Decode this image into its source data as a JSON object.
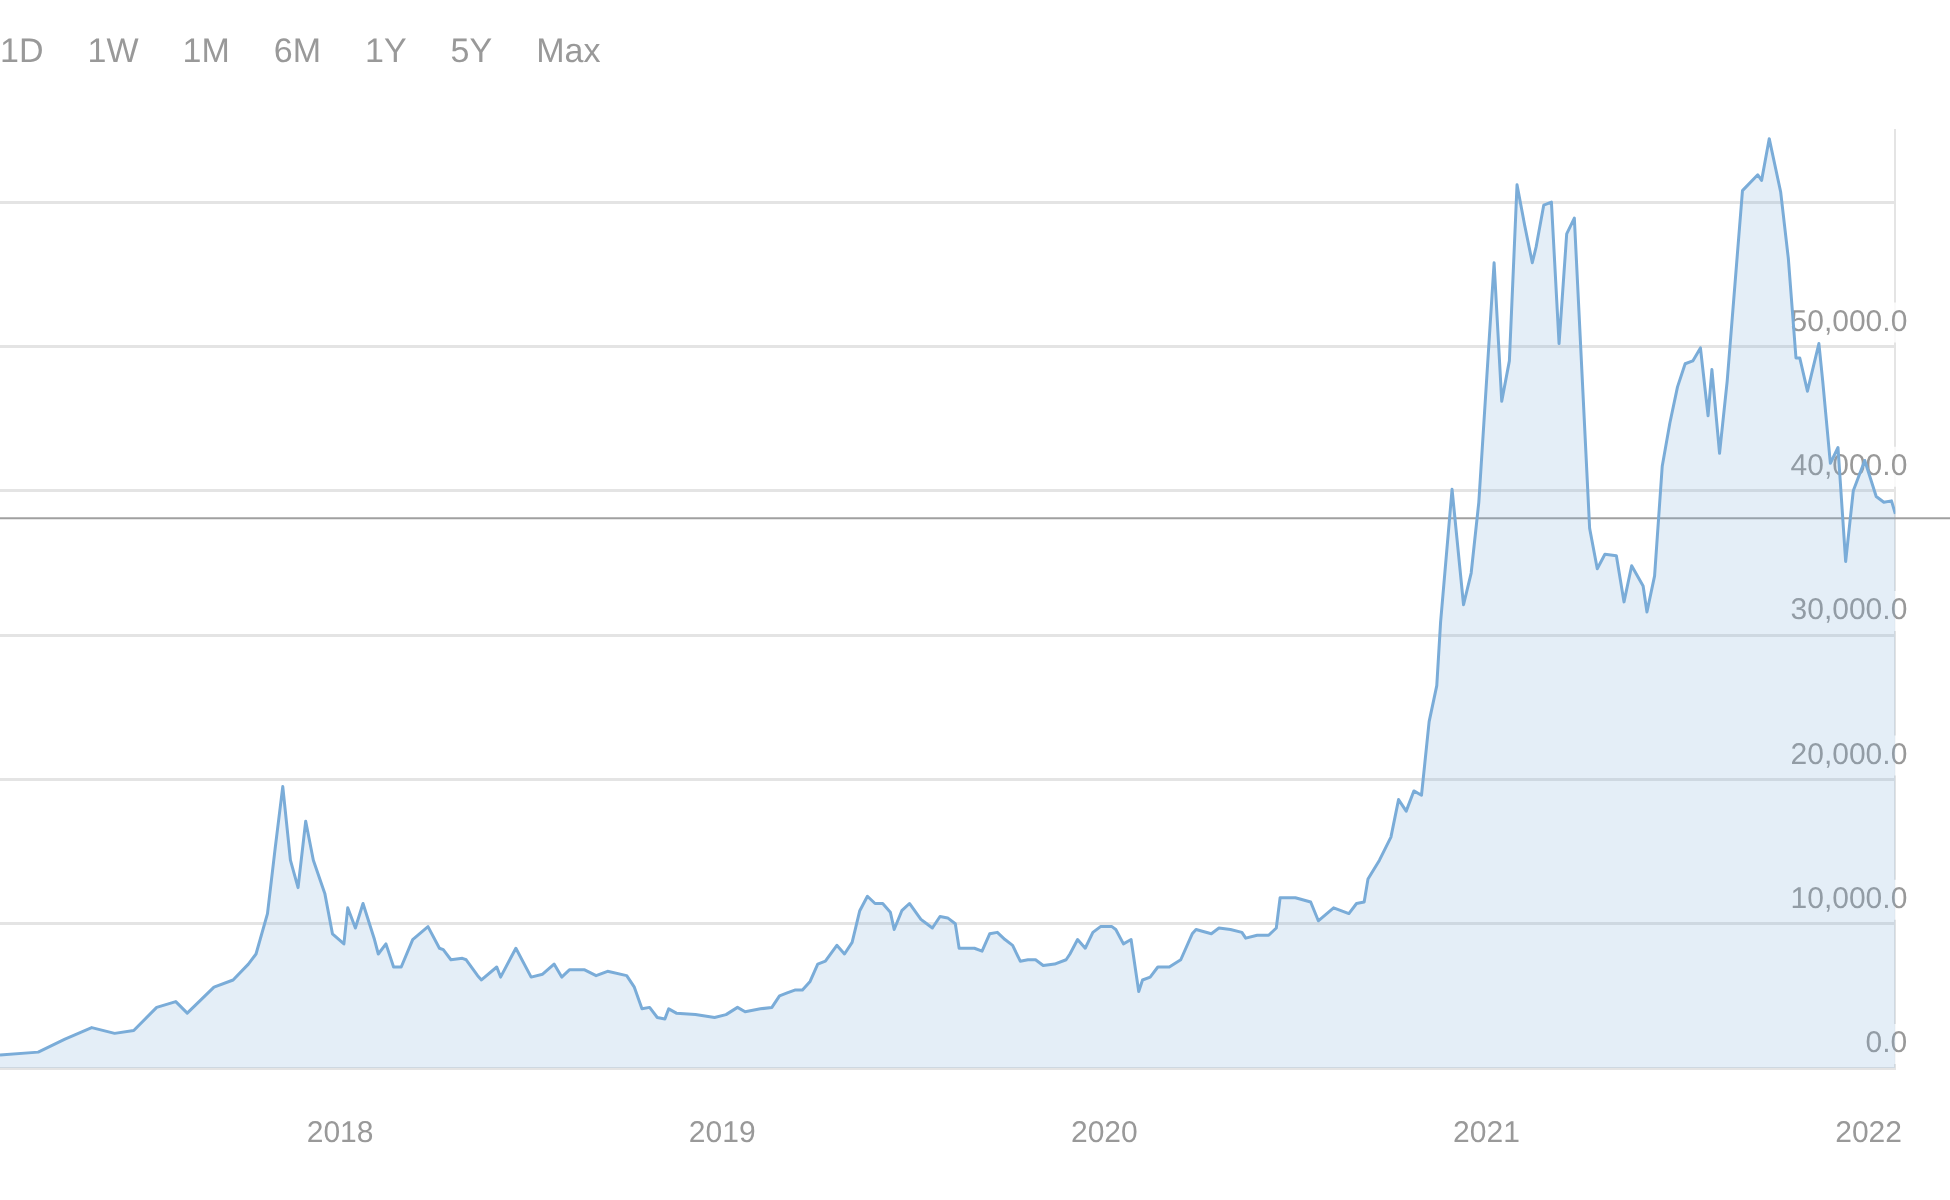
{
  "chart_data": {
    "type": "area",
    "annotations": [
      "1D",
      "1W",
      "1M",
      "6M",
      "1Y",
      "5Y",
      "Max"
    ],
    "x": [
      2017.11,
      2017.21,
      2017.28,
      2017.35,
      2017.41,
      2017.46,
      2017.52,
      2017.57,
      2017.6,
      2017.67,
      2017.72,
      2017.76,
      2017.78,
      2017.81,
      2017.83,
      2017.85,
      2017.87,
      2017.89,
      2017.91,
      2017.93,
      2017.96,
      2017.98,
      2018.01,
      2018.02,
      2018.04,
      2018.06,
      2018.09,
      2018.1,
      2018.12,
      2018.14,
      2018.16,
      2018.19,
      2018.23,
      2018.26,
      2018.27,
      2018.29,
      2018.32,
      2018.33,
      2018.36,
      2018.37,
      2018.41,
      2018.42,
      2018.46,
      2018.5,
      2018.53,
      2018.56,
      2018.58,
      2018.6,
      2018.64,
      2018.67,
      2018.7,
      2018.75,
      2018.77,
      2018.79,
      2018.81,
      2018.83,
      2018.85,
      2018.86,
      2018.88,
      2018.93,
      2018.98,
      2019.01,
      2019.04,
      2019.06,
      2019.1,
      2019.13,
      2019.15,
      2019.17,
      2019.19,
      2019.21,
      2019.23,
      2019.25,
      2019.27,
      2019.3,
      2019.32,
      2019.34,
      2019.36,
      2019.38,
      2019.4,
      2019.42,
      2019.44,
      2019.45,
      2019.47,
      2019.49,
      2019.52,
      2019.53,
      2019.55,
      2019.57,
      2019.59,
      2019.61,
      2019.62,
      2019.66,
      2019.68,
      2019.7,
      2019.72,
      2019.74,
      2019.76,
      2019.78,
      2019.8,
      2019.82,
      2019.84,
      2019.87,
      2019.9,
      2019.91,
      2019.93,
      2019.95,
      2019.97,
      2019.99,
      2020.02,
      2020.03,
      2020.05,
      2020.07,
      2020.09,
      2020.1,
      2020.12,
      2020.14,
      2020.17,
      2020.2,
      2020.23,
      2020.24,
      2020.28,
      2020.3,
      2020.33,
      2020.36,
      2020.37,
      2020.4,
      2020.43,
      2020.45,
      2020.46,
      2020.5,
      2020.54,
      2020.56,
      2020.6,
      2020.64,
      2020.66,
      2020.68,
      2020.69,
      2020.72,
      2020.75,
      2020.77,
      2020.79,
      2020.81,
      2020.83,
      2020.85,
      2020.87,
      2020.88,
      2020.91,
      2020.94,
      2020.96,
      2020.98,
      2021.02,
      2021.04,
      2021.06,
      2021.08,
      2021.1,
      2021.12,
      2021.13,
      2021.15,
      2021.17,
      2021.19,
      2021.21,
      2021.23,
      2021.27,
      2021.29,
      2021.31,
      2021.34,
      2021.36,
      2021.38,
      2021.41,
      2021.42,
      2021.44,
      2021.46,
      2021.48,
      2021.5,
      2021.52,
      2021.54,
      2021.56,
      2021.58,
      2021.59,
      2021.61,
      2021.63,
      2021.67,
      2021.71,
      2021.72,
      2021.74,
      2021.77,
      2021.79,
      2021.81,
      2021.82,
      2021.84,
      2021.87,
      2021.88,
      2021.9,
      2021.92,
      2021.94,
      2021.96,
      2021.99,
      2022.02,
      2022.04,
      2022.06,
      2022.07
    ],
    "series": [
      {
        "color": "#7aacd8",
        "values": [
          900,
          1100,
          2000,
          2800,
          2400,
          2600,
          4200,
          4600,
          3800,
          5600,
          6100,
          7200,
          7900,
          10700,
          15200,
          19500,
          14400,
          12500,
          17100,
          14400,
          12100,
          9300,
          8600,
          11100,
          9700,
          11400,
          8900,
          7900,
          8600,
          7000,
          7000,
          8900,
          9800,
          8300,
          8200,
          7500,
          7600,
          7500,
          6400,
          6100,
          7000,
          6300,
          8300,
          6300,
          6500,
          7200,
          6300,
          6800,
          6800,
          6400,
          6700,
          6400,
          5600,
          4100,
          4200,
          3500,
          3400,
          4100,
          3800,
          3700,
          3500,
          3700,
          4200,
          3900,
          4100,
          4200,
          5000,
          5200,
          5400,
          5400,
          6000,
          7200,
          7400,
          8500,
          7900,
          8700,
          10900,
          11900,
          11400,
          11400,
          10800,
          9600,
          10900,
          11400,
          10300,
          10100,
          9700,
          10500,
          10400,
          10000,
          8300,
          8300,
          8100,
          9300,
          9400,
          8900,
          8500,
          7400,
          7500,
          7500,
          7100,
          7200,
          7500,
          7900,
          8900,
          8300,
          9400,
          9800,
          9800,
          9600,
          8600,
          8900,
          5300,
          6100,
          6300,
          7000,
          7000,
          7500,
          9300,
          9600,
          9300,
          9700,
          9600,
          9400,
          9000,
          9200,
          9200,
          9700,
          11800,
          11800,
          11500,
          10200,
          11100,
          10700,
          11400,
          11500,
          13100,
          14400,
          16000,
          18600,
          17800,
          19200,
          18900,
          24000,
          26500,
          30900,
          40100,
          32100,
          34300,
          39200,
          55800,
          46200,
          49000,
          61200,
          58400,
          55800,
          56900,
          59800,
          60000,
          50200,
          57800,
          58900,
          37400,
          34600,
          35600,
          35500,
          32300,
          34800,
          33400,
          31600,
          34100,
          41700,
          44700,
          47200,
          48800,
          49000,
          49900,
          45200,
          48400,
          42600,
          47600,
          60800,
          61900,
          61500,
          64400,
          60700,
          56100,
          49200,
          49200,
          46900,
          50200,
          47600,
          41900,
          43000,
          35100,
          40000,
          42100,
          39600,
          39200,
          39300,
          38400
        ]
      }
    ],
    "xlim": [
      2017.11,
      2022.07
    ],
    "xticks": [
      2018,
      2019,
      2020,
      2021,
      2022
    ],
    "ylim": [
      0,
      65000
    ],
    "yticks": [
      {
        "value": 0,
        "label": "0.0"
      },
      {
        "value": 10000,
        "label": "10,000.0"
      },
      {
        "value": 20000,
        "label": "20,000.0"
      },
      {
        "value": 30000,
        "label": "30,000.0"
      },
      {
        "value": 40000,
        "label": "40,000.0"
      },
      {
        "value": 50000,
        "label": "50,000.0"
      },
      {
        "value": 60000,
        "label": null
      }
    ],
    "ref_lines": [
      {
        "axis": "y",
        "value": 38100,
        "color": "#a0a0a0"
      }
    ],
    "grid": "y",
    "marker": "none",
    "line_style": "solid",
    "legend": false
  }
}
